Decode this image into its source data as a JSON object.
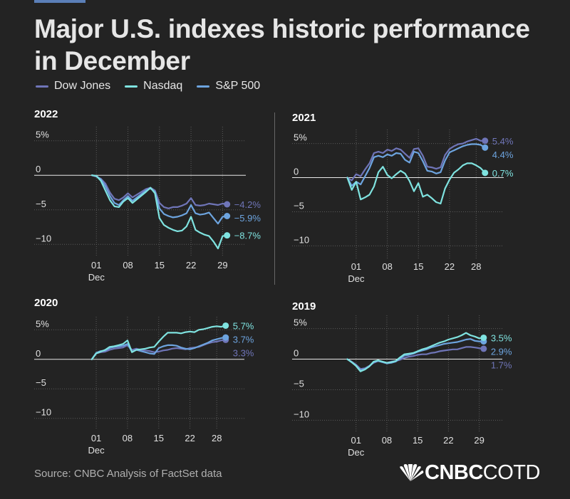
{
  "title": "Major U.S. indexes historic performance in December",
  "legend": [
    {
      "name": "Dow Jones",
      "color": "#6f75b8"
    },
    {
      "name": "Nasdaq",
      "color": "#7fe3e0"
    },
    {
      "name": "S&P 500",
      "color": "#6da4df"
    }
  ],
  "source": "Source: CNBC Analysis of FactSet data",
  "logo": {
    "bold": "CNBC",
    "light": "COTD",
    "icon": "peacock-icon"
  },
  "chart_data": [
    {
      "type": "line",
      "title": "2022",
      "x_ticks": [
        "01",
        "08",
        "15",
        "22",
        "29"
      ],
      "x_tick_days": [
        1,
        8,
        15,
        22,
        29
      ],
      "x_sublabel": "Dec",
      "y_ticks": [
        "5%",
        "0",
        "−5",
        "−10"
      ],
      "y_tick_values": [
        5,
        0,
        -5,
        -10
      ],
      "ylim": [
        -11,
        6
      ],
      "xlim": [
        -3,
        31
      ],
      "series": [
        {
          "name": "Dow Jones",
          "color": "#6f75b8",
          "x": [
            0,
            1,
            2,
            3,
            4,
            5,
            6,
            7,
            8,
            9,
            12,
            13,
            14,
            15,
            16,
            17,
            18,
            19,
            20,
            21,
            22,
            23,
            24,
            25,
            26,
            27,
            28,
            29,
            30
          ],
          "y": [
            0,
            -0.2,
            -0.5,
            -1.2,
            -2.5,
            -3.4,
            -3.6,
            -3.2,
            -2.6,
            -3.2,
            -2.0,
            -1.8,
            -2.2,
            -4.0,
            -4.6,
            -4.8,
            -4.6,
            -4.6,
            -4.4,
            -4.1,
            -3.3,
            -4.3,
            -4.4,
            -4.3,
            -4.1,
            -4.2,
            -4.3,
            -4.1,
            -4.2
          ],
          "end_label": "−4.2%"
        },
        {
          "name": "S&P 500",
          "color": "#6da4df",
          "x": [
            0,
            1,
            2,
            3,
            4,
            5,
            6,
            7,
            8,
            9,
            12,
            13,
            14,
            15,
            16,
            17,
            18,
            19,
            20,
            21,
            22,
            23,
            24,
            25,
            26,
            27,
            28,
            29,
            30
          ],
          "y": [
            0,
            -0.1,
            -0.6,
            -1.6,
            -3.0,
            -4.0,
            -4.3,
            -3.6,
            -3.0,
            -3.7,
            -2.2,
            -1.9,
            -2.4,
            -4.8,
            -5.6,
            -5.9,
            -6.1,
            -6.0,
            -5.8,
            -5.5,
            -4.3,
            -5.5,
            -5.7,
            -5.6,
            -5.4,
            -6.2,
            -7.0,
            -6.0,
            -5.9
          ],
          "end_label": "−5.9%"
        },
        {
          "name": "Nasdaq",
          "color": "#7fe3e0",
          "x": [
            0,
            1,
            2,
            3,
            4,
            5,
            6,
            7,
            8,
            9,
            12,
            13,
            14,
            15,
            16,
            17,
            18,
            19,
            20,
            21,
            22,
            23,
            24,
            25,
            26,
            27,
            28,
            29,
            30
          ],
          "y": [
            0,
            -0.1,
            -0.8,
            -2.2,
            -3.6,
            -4.5,
            -4.6,
            -3.8,
            -3.3,
            -4.0,
            -2.4,
            -1.8,
            -2.6,
            -6.2,
            -7.2,
            -7.6,
            -7.9,
            -8.1,
            -8.0,
            -7.4,
            -6.0,
            -7.9,
            -8.3,
            -8.6,
            -8.8,
            -9.6,
            -10.6,
            -8.8,
            -8.7
          ],
          "end_label": "−8.7%"
        }
      ]
    },
    {
      "type": "line",
      "title": "2021",
      "x_ticks": [
        "01",
        "08",
        "15",
        "22",
        "28"
      ],
      "x_tick_days": [
        1,
        8,
        15,
        22,
        28
      ],
      "x_sublabel": "Dec",
      "y_ticks": [
        "5%",
        "0",
        "−5",
        "−10"
      ],
      "y_tick_values": [
        5,
        0,
        -5,
        -10
      ],
      "ylim": [
        -11,
        6
      ],
      "xlim": [
        -3,
        31
      ],
      "series": [
        {
          "name": "Dow Jones",
          "color": "#6f75b8",
          "x": [
            -1,
            0,
            1,
            2,
            3,
            4,
            5,
            6,
            7,
            8,
            9,
            10,
            11,
            12,
            13,
            14,
            15,
            16,
            17,
            18,
            19,
            20,
            21,
            22,
            23,
            24,
            25,
            26,
            27,
            28,
            29,
            30
          ],
          "y": [
            0,
            -0.4,
            0.5,
            0.2,
            1.2,
            2.1,
            3.6,
            3.8,
            3.6,
            4.1,
            3.9,
            4.3,
            4.1,
            3.5,
            2.9,
            4.2,
            4.3,
            3.2,
            1.6,
            1.5,
            1.3,
            1.5,
            3.3,
            4.2,
            4.6,
            4.9,
            5.0,
            5.3,
            5.5,
            5.7,
            5.4,
            5.4
          ],
          "end_label": "5.4%"
        },
        {
          "name": "S&P 500",
          "color": "#6da4df",
          "x": [
            -1,
            0,
            1,
            2,
            3,
            4,
            5,
            6,
            7,
            8,
            9,
            10,
            11,
            12,
            13,
            14,
            15,
            16,
            17,
            18,
            19,
            20,
            21,
            22,
            23,
            24,
            25,
            26,
            27,
            28,
            29,
            30
          ],
          "y": [
            0,
            -1.2,
            -0.6,
            -1.0,
            0.2,
            1.4,
            3.0,
            3.2,
            3.0,
            3.4,
            3.2,
            3.6,
            3.5,
            2.6,
            2.2,
            3.8,
            3.6,
            2.4,
            1.0,
            0.9,
            0.6,
            0.8,
            2.5,
            3.7,
            4.0,
            4.3,
            4.6,
            4.8,
            4.9,
            4.9,
            4.8,
            4.4
          ],
          "end_label": "4.4%"
        },
        {
          "name": "Nasdaq",
          "color": "#7fe3e0",
          "x": [
            -1,
            0,
            1,
            2,
            3,
            4,
            5,
            6,
            7,
            8,
            9,
            10,
            11,
            12,
            13,
            14,
            15,
            16,
            17,
            18,
            19,
            20,
            21,
            22,
            23,
            24,
            25,
            26,
            27,
            28,
            29,
            30
          ],
          "y": [
            0,
            -1.8,
            -0.6,
            -3.2,
            -2.9,
            -2.5,
            -1.3,
            0.8,
            1.6,
            0.4,
            -0.1,
            0.5,
            1.0,
            0.6,
            -0.5,
            -2.0,
            -0.8,
            -2.8,
            -2.5,
            -3.0,
            -3.6,
            -3.8,
            -1.6,
            -0.3,
            0.7,
            1.2,
            1.8,
            2.1,
            2.1,
            1.8,
            1.4,
            0.7
          ],
          "end_label": "0.7%"
        }
      ]
    },
    {
      "type": "line",
      "title": "2020",
      "x_ticks": [
        "01",
        "08",
        "15",
        "22",
        "28"
      ],
      "x_tick_days": [
        1,
        8,
        15,
        22,
        28
      ],
      "x_sublabel": "Dec",
      "y_ticks": [
        "5%",
        "0",
        "−5",
        "−10"
      ],
      "y_tick_values": [
        5,
        0,
        -5,
        -10
      ],
      "ylim": [
        -11,
        6
      ],
      "xlim": [
        -3,
        31
      ],
      "series": [
        {
          "name": "Dow Jones",
          "color": "#6f75b8",
          "x": [
            0,
            1,
            2,
            3,
            4,
            5,
            6,
            7,
            8,
            9,
            10,
            11,
            12,
            13,
            14,
            15,
            16,
            17,
            18,
            19,
            20,
            21,
            22,
            23,
            24,
            25,
            26,
            27,
            28,
            29,
            30
          ],
          "y": [
            0,
            1.0,
            1.2,
            1.3,
            1.6,
            1.8,
            1.9,
            2.0,
            2.4,
            1.6,
            1.8,
            1.6,
            1.5,
            1.4,
            1.2,
            1.3,
            1.5,
            1.6,
            1.8,
            1.9,
            1.8,
            1.7,
            1.9,
            2.0,
            2.1,
            2.4,
            2.7,
            2.9,
            3.0,
            3.2,
            3.3
          ],
          "end_label": "3.3%"
        },
        {
          "name": "S&P 500",
          "color": "#6da4df",
          "x": [
            0,
            1,
            2,
            3,
            4,
            5,
            6,
            7,
            8,
            9,
            10,
            11,
            12,
            13,
            14,
            15,
            16,
            17,
            18,
            19,
            20,
            21,
            22,
            23,
            24,
            25,
            26,
            27,
            28,
            29,
            30
          ],
          "y": [
            0,
            1.1,
            1.4,
            1.5,
            1.9,
            2.1,
            2.2,
            2.3,
            2.6,
            1.3,
            1.6,
            1.4,
            1.2,
            1.0,
            0.9,
            1.9,
            2.2,
            2.4,
            2.4,
            2.3,
            2.0,
            1.8,
            1.7,
            1.9,
            2.2,
            2.5,
            2.8,
            3.2,
            3.4,
            3.6,
            3.7
          ],
          "end_label": "3.7%"
        },
        {
          "name": "Nasdaq",
          "color": "#7fe3e0",
          "x": [
            0,
            1,
            2,
            3,
            4,
            5,
            6,
            7,
            8,
            9,
            10,
            11,
            12,
            13,
            14,
            15,
            16,
            17,
            18,
            19,
            20,
            21,
            22,
            23,
            24,
            25,
            26,
            27,
            28,
            29,
            30
          ],
          "y": [
            0,
            1.0,
            1.3,
            1.6,
            2.1,
            2.2,
            2.4,
            2.6,
            3.2,
            1.2,
            1.6,
            1.7,
            1.8,
            2.0,
            2.1,
            3.0,
            3.8,
            4.5,
            4.5,
            4.5,
            4.4,
            4.6,
            4.7,
            4.6,
            5.0,
            5.1,
            5.3,
            5.5,
            5.6,
            5.5,
            5.7
          ],
          "end_label": "5.7%"
        }
      ]
    },
    {
      "type": "line",
      "title": "2019",
      "x_ticks": [
        "01",
        "08",
        "15",
        "22",
        "29"
      ],
      "x_tick_days": [
        1,
        8,
        15,
        22,
        29
      ],
      "x_sublabel": "Dec",
      "y_ticks": [
        "5%",
        "0",
        "−5",
        "−10"
      ],
      "y_tick_values": [
        5,
        0,
        -5,
        -10
      ],
      "ylim": [
        -11,
        6
      ],
      "xlim": [
        -3,
        31
      ],
      "series": [
        {
          "name": "Dow Jones",
          "color": "#6f75b8",
          "x": [
            -1,
            0,
            1,
            2,
            3,
            4,
            5,
            6,
            7,
            8,
            9,
            10,
            11,
            12,
            13,
            14,
            15,
            16,
            17,
            18,
            19,
            20,
            21,
            22,
            23,
            24,
            25,
            26,
            27,
            28,
            29,
            30
          ],
          "y": [
            0,
            -0.4,
            -0.9,
            -1.6,
            -1.5,
            -1.1,
            -0.6,
            -0.3,
            -0.4,
            -0.6,
            -0.4,
            -0.3,
            -0.1,
            0.2,
            0.4,
            0.5,
            0.7,
            0.8,
            0.8,
            1.0,
            1.1,
            1.3,
            1.4,
            1.5,
            1.6,
            1.6,
            1.8,
            2.0,
            2.0,
            1.9,
            1.8,
            1.7
          ],
          "end_label": "1.7%"
        },
        {
          "name": "S&P 500",
          "color": "#6da4df",
          "x": [
            -1,
            0,
            1,
            2,
            3,
            4,
            5,
            6,
            7,
            8,
            9,
            10,
            11,
            12,
            13,
            14,
            15,
            16,
            17,
            18,
            19,
            20,
            21,
            22,
            23,
            24,
            25,
            26,
            27,
            28,
            29,
            30
          ],
          "y": [
            0,
            -0.5,
            -1.0,
            -1.8,
            -1.6,
            -1.2,
            -0.5,
            -0.3,
            -0.5,
            -0.7,
            -0.6,
            -0.4,
            0.1,
            0.6,
            0.7,
            0.9,
            1.2,
            1.4,
            1.6,
            1.9,
            2.1,
            2.3,
            2.5,
            2.6,
            2.7,
            2.8,
            3.0,
            3.2,
            3.3,
            3.0,
            2.9,
            2.9
          ],
          "end_label": "2.9%"
        },
        {
          "name": "Nasdaq",
          "color": "#7fe3e0",
          "x": [
            -1,
            0,
            1,
            2,
            3,
            4,
            5,
            6,
            7,
            8,
            9,
            10,
            11,
            12,
            13,
            14,
            15,
            16,
            17,
            18,
            19,
            20,
            21,
            22,
            23,
            24,
            25,
            26,
            27,
            28,
            29,
            30
          ],
          "y": [
            0,
            -0.5,
            -1.1,
            -2.0,
            -1.7,
            -1.2,
            -0.4,
            -0.2,
            -0.4,
            -0.6,
            -0.5,
            -0.3,
            0.3,
            0.8,
            0.9,
            1.0,
            1.3,
            1.6,
            1.8,
            2.1,
            2.4,
            2.7,
            2.9,
            3.2,
            3.4,
            3.6,
            3.9,
            4.3,
            3.9,
            3.7,
            3.4,
            3.5
          ],
          "end_label": "3.5%"
        }
      ]
    }
  ]
}
